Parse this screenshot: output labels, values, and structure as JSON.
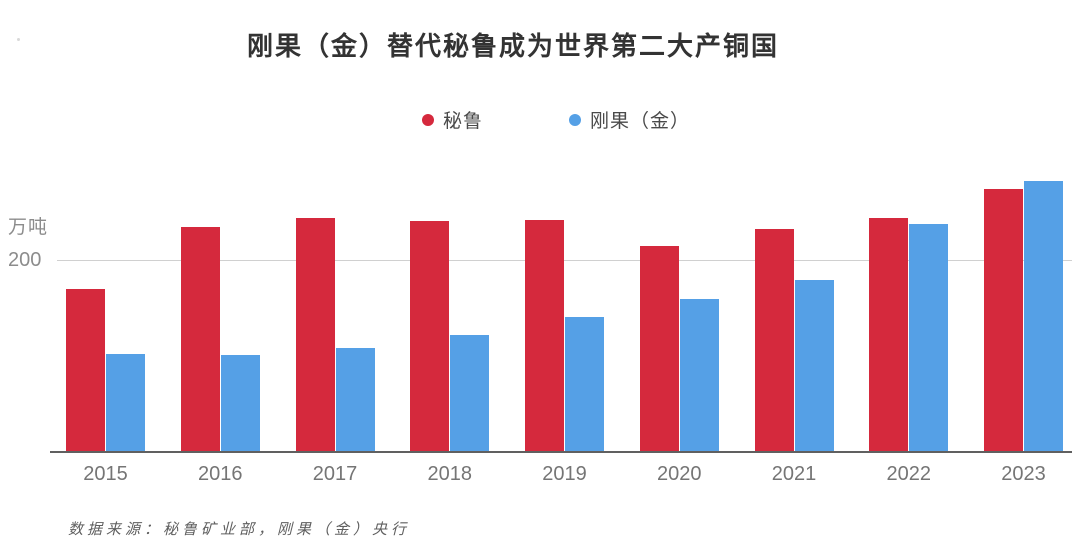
{
  "title": "刚果（金）替代秘鲁成为世界第二大产铜国",
  "legend": {
    "items": [
      {
        "label": "秘鲁",
        "color": "#d5293d"
      },
      {
        "label": "刚果（金）",
        "color": "#55a0e6"
      }
    ]
  },
  "y_axis": {
    "unit_label": "万吨",
    "tick_label": "200",
    "tick_value": 200
  },
  "source_note": "数据来源：秘鲁矿业部，刚果（金）央行",
  "colors": {
    "peru_red": "#d5293d",
    "drc_blue": "#55a0e6",
    "gridline": "#d0d0d0",
    "axis_line": "#606060",
    "title_text": "#333333",
    "axis_text": "#8c8c8c",
    "tick_text": "#757575"
  },
  "chart_data": {
    "type": "bar",
    "title": "刚果（金）替代秘鲁成为世界第二大产铜国",
    "categories": [
      "2015",
      "2016",
      "2017",
      "2018",
      "2019",
      "2020",
      "2021",
      "2022",
      "2023"
    ],
    "series": [
      {
        "name": "秘鲁",
        "color": "#d5293d",
        "values": [
          170,
          235,
          244,
          241,
          242,
          215,
          232,
          244,
          274
        ]
      },
      {
        "name": "刚果（金）",
        "color": "#55a0e6",
        "values": [
          102,
          100,
          108,
          121,
          140,
          159,
          179,
          238,
          283
        ]
      }
    ],
    "xlabel": "",
    "ylabel": "万吨",
    "ylim": [
      0,
      314
    ],
    "gridlines_at": [
      200
    ],
    "grid": true,
    "legend_position": "top"
  }
}
